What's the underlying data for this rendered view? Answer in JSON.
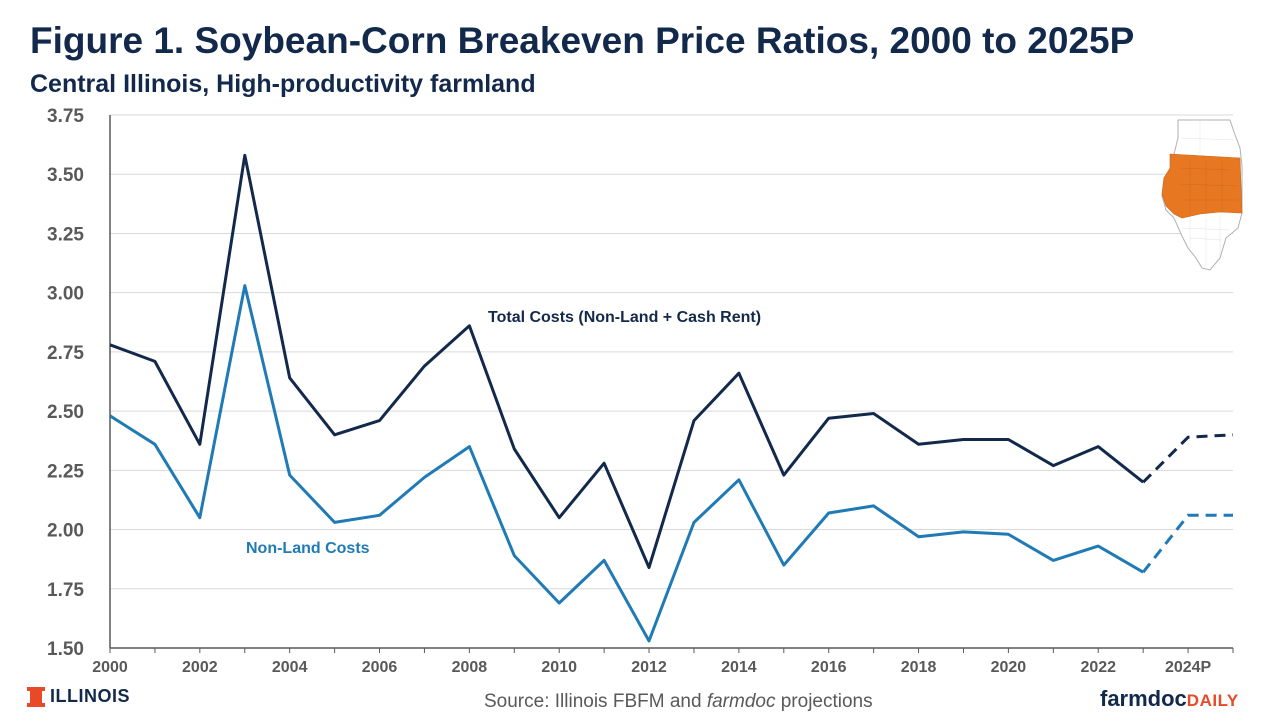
{
  "header": {
    "title": "Figure 1. Soybean-Corn Breakeven Price Ratios, 2000 to 2025P",
    "subtitle": "Central Illinois, High-productivity farmland"
  },
  "footer": {
    "logo_text": "ILLINOIS",
    "source_prefix": "Source: Illinois FBFM and ",
    "source_italic": "farmdoc",
    "source_suffix": " projections",
    "brand_main": "farmdoc",
    "brand_accent": "DAILY"
  },
  "colors": {
    "total_costs": "#13294B",
    "non_land": "#1F7AB5",
    "map_highlight": "#E87722",
    "brand_orange": "#E84A27"
  },
  "chart_data": {
    "type": "line",
    "title": "Figure 1. Soybean-Corn Breakeven Price Ratios, 2000 to 2025P",
    "subtitle": "Central Illinois, High-productivity farmland",
    "ylim": [
      1.5,
      3.75
    ],
    "y_ticks": [
      "1.50",
      "1.75",
      "2.00",
      "2.25",
      "2.50",
      "2.75",
      "3.00",
      "3.25",
      "3.50",
      "3.75"
    ],
    "x": [
      "2000",
      "2001",
      "2002",
      "2003",
      "2004",
      "2005",
      "2006",
      "2007",
      "2008",
      "2009",
      "2010",
      "2011",
      "2012",
      "2013",
      "2014",
      "2015",
      "2016",
      "2017",
      "2018",
      "2019",
      "2020",
      "2021",
      "2022",
      "2023",
      "2024P",
      "2025P"
    ],
    "x_tick_labels": [
      "2000",
      "2002",
      "2004",
      "2006",
      "2008",
      "2010",
      "2012",
      "2014",
      "2016",
      "2018",
      "2020",
      "2022",
      "2024P"
    ],
    "projection_start_index": 23,
    "grid": true,
    "series": [
      {
        "name": "Total Costs (Non-Land + Cash Rent)",
        "values": [
          2.78,
          2.71,
          2.36,
          3.58,
          2.64,
          2.4,
          2.46,
          2.69,
          2.86,
          2.34,
          2.05,
          2.28,
          1.84,
          2.46,
          2.66,
          2.23,
          2.47,
          2.49,
          2.36,
          2.38,
          2.38,
          2.27,
          2.35,
          2.2,
          2.39,
          2.4
        ]
      },
      {
        "name": "Non-Land Costs",
        "values": [
          2.48,
          2.36,
          2.05,
          3.03,
          2.23,
          2.03,
          2.06,
          2.22,
          2.35,
          1.89,
          1.69,
          1.87,
          1.53,
          2.03,
          2.21,
          1.85,
          2.07,
          2.1,
          1.97,
          1.99,
          1.98,
          1.87,
          1.93,
          1.82,
          2.06,
          2.06
        ]
      }
    ]
  }
}
